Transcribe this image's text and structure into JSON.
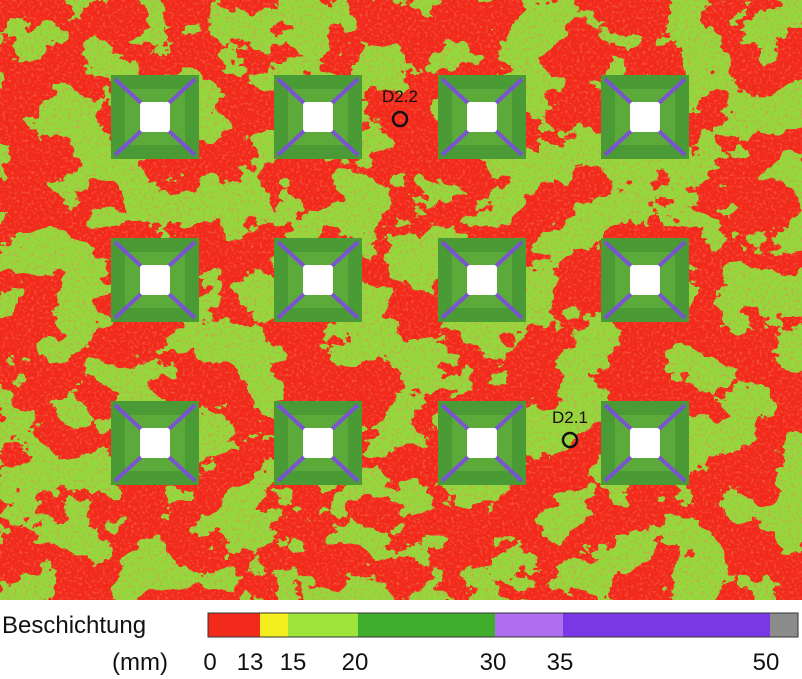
{
  "map": {
    "markers": [
      {
        "label": "D2.2"
      },
      {
        "label": "D2.1"
      }
    ]
  },
  "legend": {
    "title": "Beschichtung",
    "unit": "(mm)",
    "ticks": [
      0,
      13,
      15,
      20,
      30,
      35,
      50
    ],
    "colors": [
      "#f22a1c",
      "#f5ee1e",
      "#9ee43a",
      "#3fae2c",
      "#b06ef0",
      "#7a37e6",
      "#8c8c8c"
    ]
  }
}
